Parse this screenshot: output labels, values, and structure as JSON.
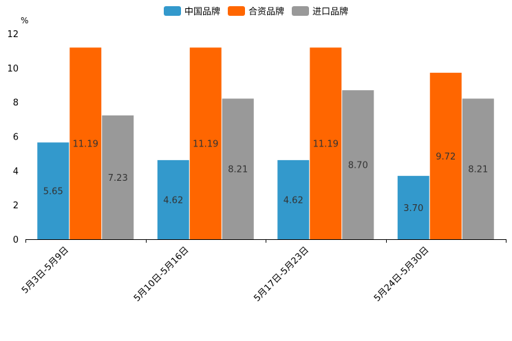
{
  "chart_data": {
    "type": "bar",
    "title": "",
    "xlabel": "",
    "ylabel": "%",
    "ylim": [
      0,
      12
    ],
    "yticks": [
      0,
      2,
      4,
      6,
      8,
      10,
      12
    ],
    "grid": false,
    "legend_position": "top-center",
    "categories": [
      "5月3日-5月9日",
      "5月10日-5月16日",
      "5月17日-5月23日",
      "5月24日-5月30日"
    ],
    "series": [
      {
        "name": "中国品牌",
        "color": "#3399cc",
        "values": [
          5.65,
          4.62,
          4.62,
          3.7
        ],
        "labels": [
          "5.65",
          "4.62",
          "4.62",
          "3.70"
        ]
      },
      {
        "name": "合资品牌",
        "color": "#ff6600",
        "values": [
          11.19,
          11.19,
          11.19,
          9.72
        ],
        "labels": [
          "11.19",
          "11.19",
          "11.19",
          "9.72"
        ]
      },
      {
        "name": "进口品牌",
        "color": "#999999",
        "values": [
          7.23,
          8.21,
          8.7,
          8.21
        ],
        "labels": [
          "7.23",
          "8.21",
          "8.70",
          "8.21"
        ]
      }
    ]
  }
}
